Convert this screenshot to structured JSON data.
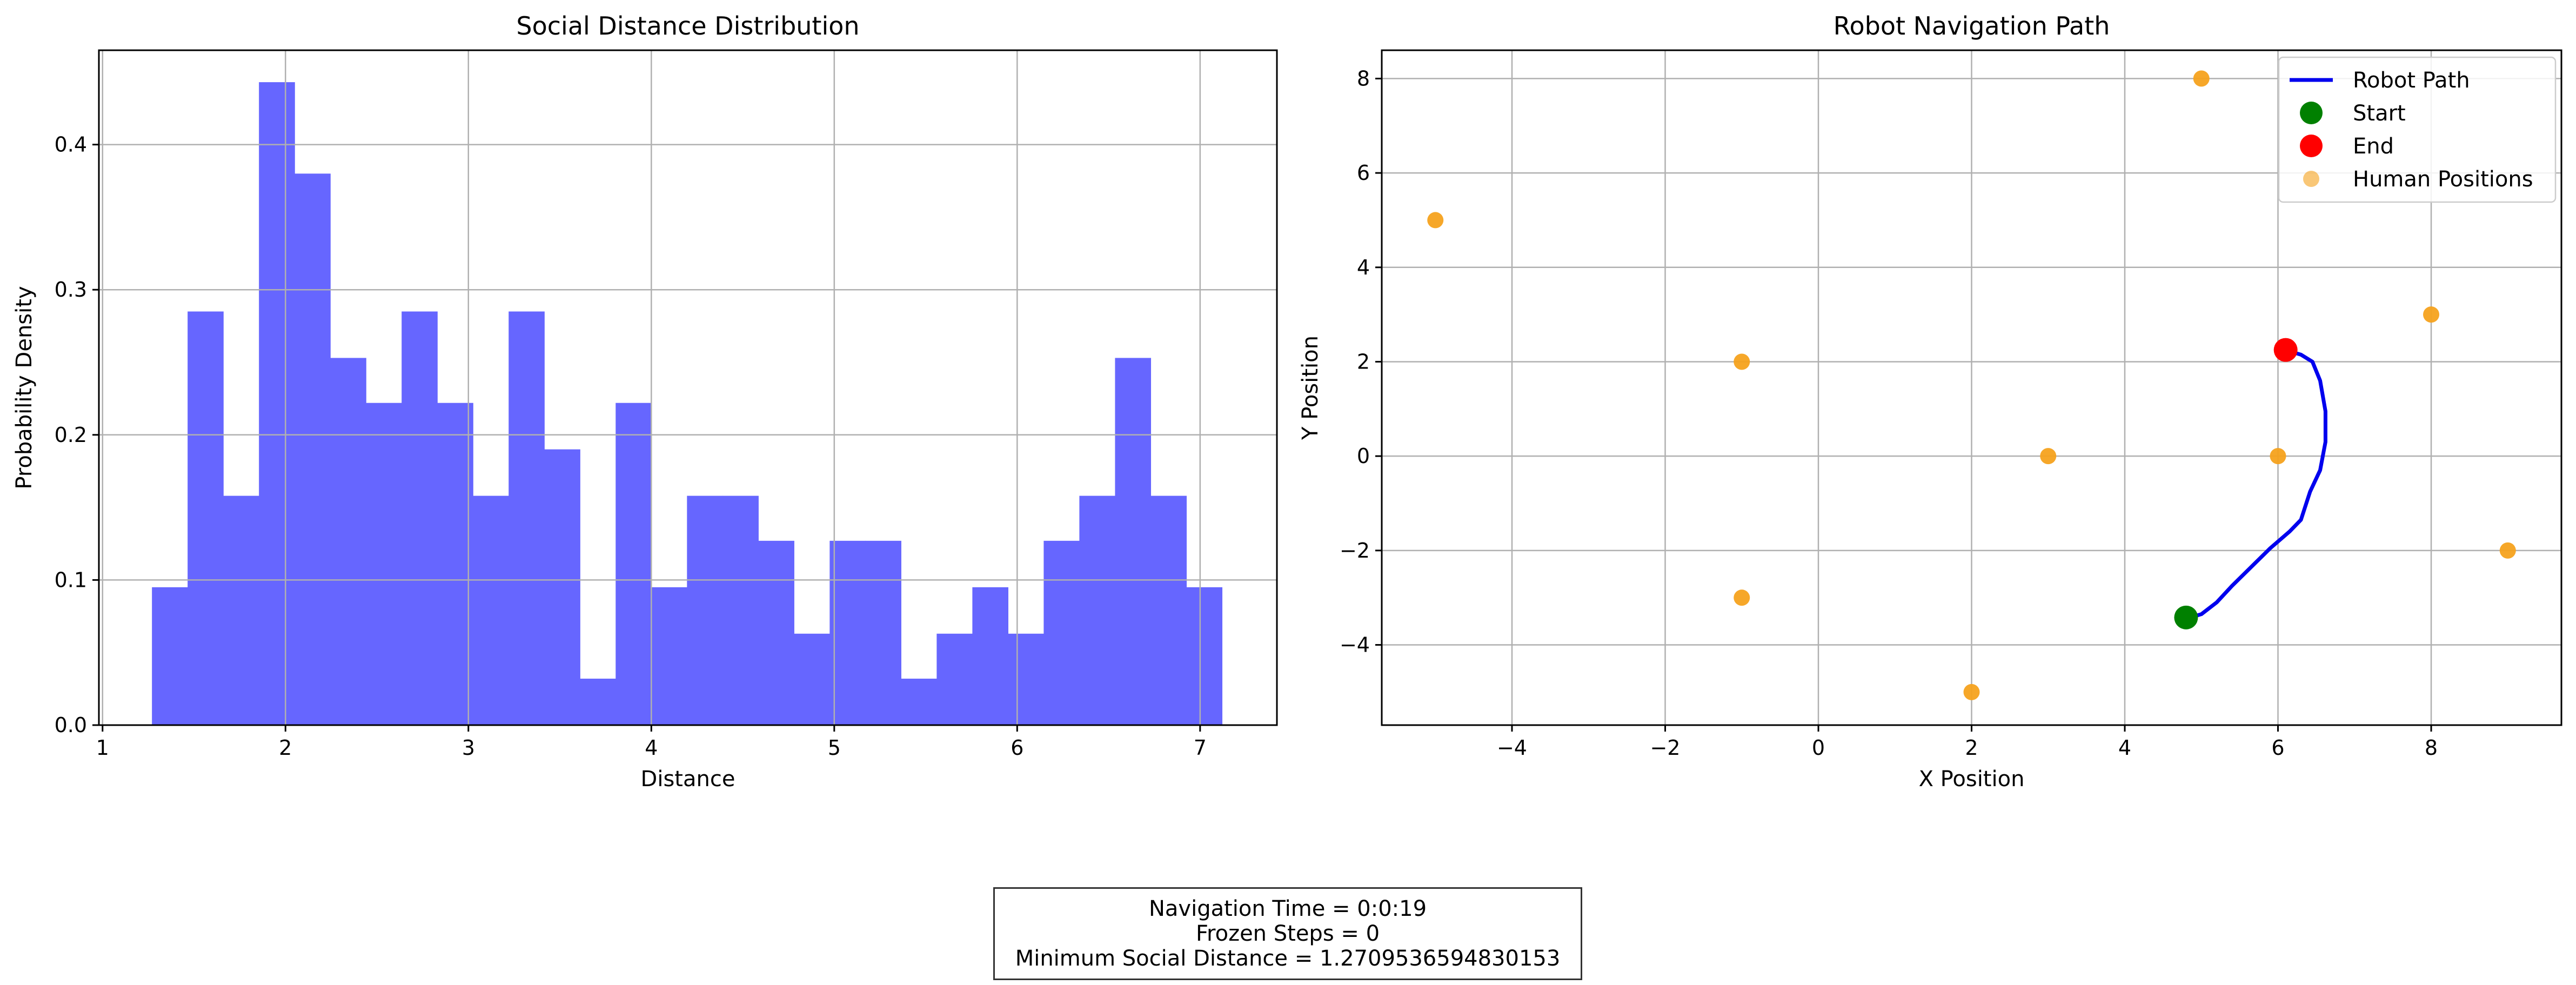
{
  "chart_data": [
    {
      "type": "bar",
      "subtype": "histogram",
      "title": "Social Distance Distribution",
      "xlabel": "Distance",
      "ylabel": "Probability Density",
      "xlim": [
        0.98,
        7.42
      ],
      "ylim": [
        0,
        0.465
      ],
      "xticks": [
        "1",
        "2",
        "3",
        "4",
        "5",
        "6",
        "7"
      ],
      "yticks": [
        "0.0",
        "0.1",
        "0.2",
        "0.3",
        "0.4"
      ],
      "grid": true,
      "color": "#6666ff",
      "bin_start": 1.27,
      "bin_width": 0.195,
      "values": [
        0.095,
        0.285,
        0.158,
        0.443,
        0.38,
        0.253,
        0.222,
        0.285,
        0.222,
        0.158,
        0.285,
        0.19,
        0.032,
        0.222,
        0.095,
        0.158,
        0.158,
        0.127,
        0.063,
        0.127,
        0.127,
        0.032,
        0.063,
        0.095,
        0.063,
        0.127,
        0.158,
        0.253,
        0.158,
        0.095
      ]
    },
    {
      "type": "scatter",
      "title": "Robot Navigation Path",
      "xlabel": "X Position",
      "ylabel": "Y Position",
      "xlim": [
        -5.7,
        9.7
      ],
      "ylim": [
        -5.7,
        8.6
      ],
      "xticks": [
        -4,
        -2,
        0,
        2,
        4,
        6,
        8
      ],
      "yticks": [
        -4,
        -2,
        0,
        2,
        4,
        6,
        8
      ],
      "grid": true,
      "legend_position": "top-right",
      "series": [
        {
          "name": "Robot Path",
          "kind": "line",
          "color": "#0000ee",
          "points": [
            [
              4.85,
              -3.42
            ],
            [
              5.0,
              -3.35
            ],
            [
              5.2,
              -3.1
            ],
            [
              5.4,
              -2.75
            ],
            [
              5.65,
              -2.35
            ],
            [
              5.9,
              -1.95
            ],
            [
              6.15,
              -1.6
            ],
            [
              6.3,
              -1.35
            ],
            [
              6.42,
              -0.75
            ],
            [
              6.55,
              -0.3
            ],
            [
              6.62,
              0.3
            ],
            [
              6.62,
              0.95
            ],
            [
              6.55,
              1.6
            ],
            [
              6.45,
              2.0
            ],
            [
              6.3,
              2.15
            ],
            [
              6.15,
              2.22
            ]
          ]
        },
        {
          "name": "Start",
          "kind": "marker",
          "color": "#008000",
          "points": [
            [
              4.8,
              -3.42
            ]
          ]
        },
        {
          "name": "End",
          "kind": "marker",
          "color": "#ff0000",
          "points": [
            [
              6.1,
              2.25
            ]
          ]
        },
        {
          "name": "Human Positions",
          "kind": "scatter",
          "color": "#f5a21d",
          "points": [
            [
              5,
              8
            ],
            [
              -5,
              5
            ],
            [
              8,
              3
            ],
            [
              -1,
              2
            ],
            [
              3,
              0
            ],
            [
              6,
              0
            ],
            [
              9,
              -2
            ],
            [
              -1,
              -3
            ],
            [
              2,
              -5
            ]
          ]
        }
      ]
    }
  ],
  "summary": {
    "line1": "Navigation Time = 0:0:19",
    "line2": "Frozen Steps = 0",
    "line3": "Minimum Social Distance = 1.2709536594830153"
  }
}
